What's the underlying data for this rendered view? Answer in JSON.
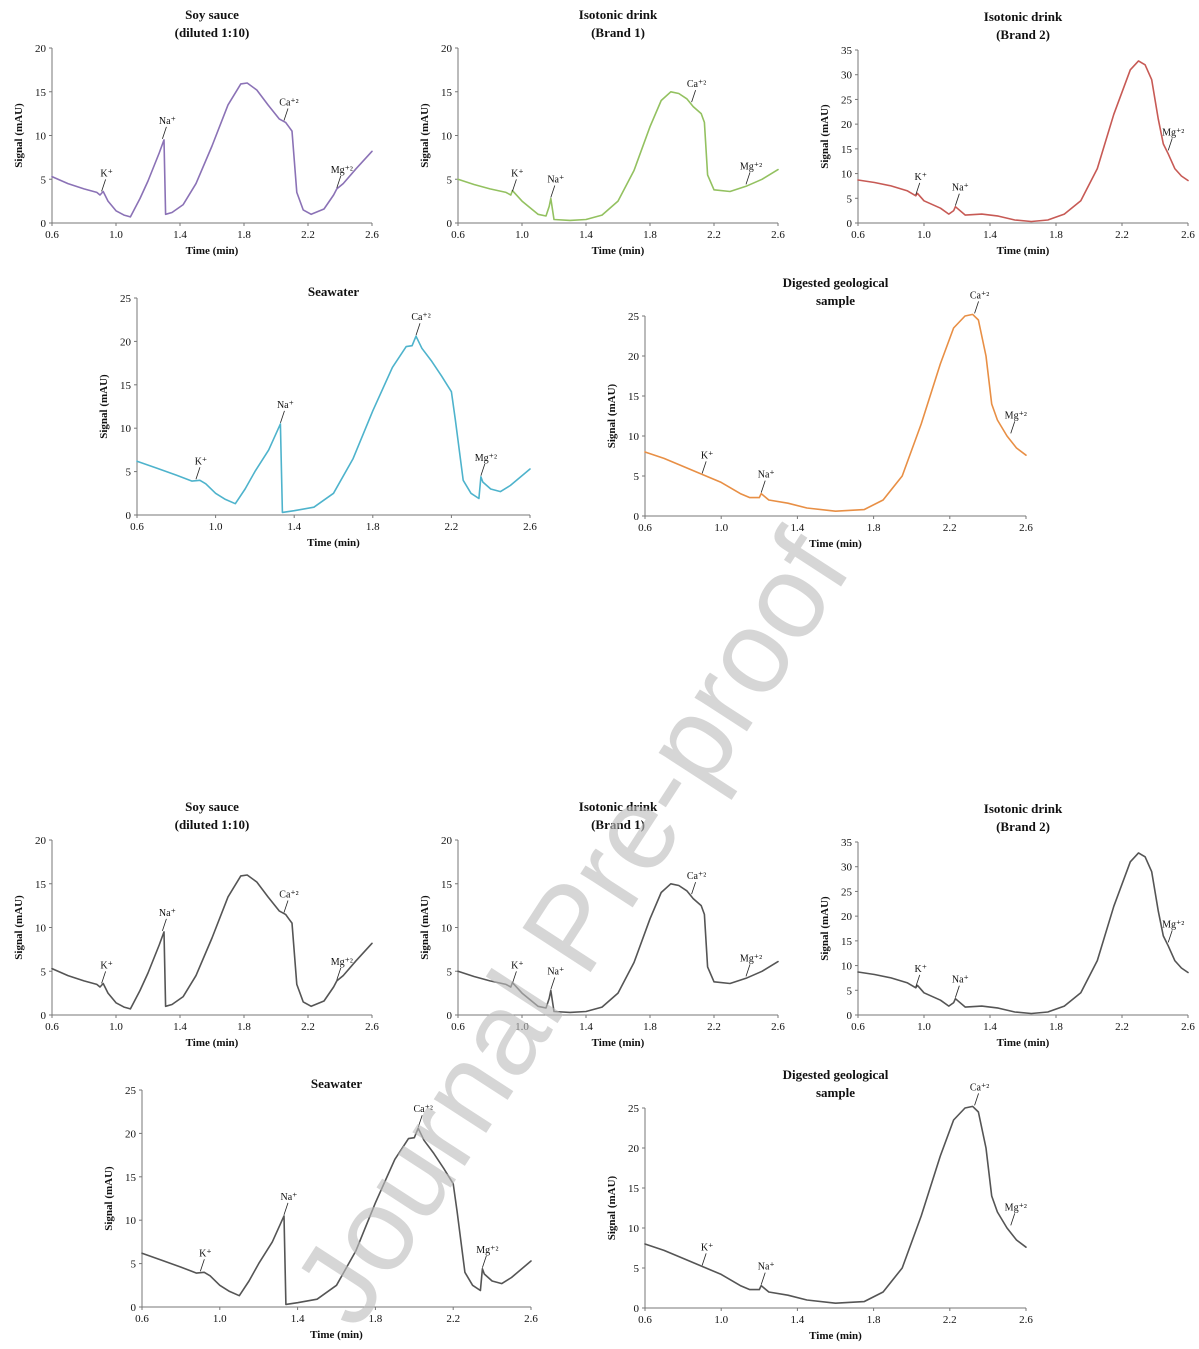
{
  "watermark": "Journal Pre-proof",
  "chart_data": [
    {
      "type": "line",
      "color": "#8b72b6",
      "title": [
        "Soy sauce",
        "(diluted 1:10)"
      ],
      "xlabel": "Time (min)",
      "ylabel": "Signal (mAU)",
      "xlim": [
        0.6,
        2.6
      ],
      "ylim": [
        0,
        20
      ],
      "xticks": [
        0.6,
        1.0,
        1.4,
        1.8,
        2.2,
        2.6
      ],
      "yticks": [
        0,
        5,
        10,
        15,
        20
      ],
      "x": [
        0.6,
        0.7,
        0.8,
        0.88,
        0.9,
        0.92,
        0.95,
        1.0,
        1.05,
        1.09,
        1.15,
        1.2,
        1.27,
        1.3,
        1.31,
        1.35,
        1.42,
        1.5,
        1.6,
        1.7,
        1.78,
        1.82,
        1.88,
        1.95,
        2.02,
        2.06,
        2.08,
        2.1,
        2.13,
        2.17,
        2.22,
        2.3,
        2.36,
        2.38,
        2.42,
        2.5,
        2.6
      ],
      "y": [
        5.3,
        4.5,
        3.9,
        3.5,
        3.2,
        3.6,
        2.5,
        1.4,
        0.9,
        0.7,
        2.8,
        4.8,
        8.0,
        9.5,
        1.0,
        1.2,
        2.1,
        4.5,
        8.8,
        13.5,
        15.9,
        16.0,
        15.2,
        13.5,
        11.9,
        11.5,
        11.0,
        10.5,
        3.5,
        1.5,
        1.0,
        1.6,
        3.2,
        3.9,
        4.5,
        6.2,
        8.2
      ],
      "annotations": [
        {
          "label": "K⁺",
          "x": 0.91,
          "y": 3.5
        },
        {
          "label": "Na⁺",
          "x": 1.29,
          "y": 9.5
        },
        {
          "label": "Ca⁺²",
          "x": 2.05,
          "y": 11.6
        },
        {
          "label": "Mg⁺²",
          "x": 2.38,
          "y": 3.9
        }
      ]
    },
    {
      "type": "line",
      "color": "#93c160",
      "title": [
        "Isotonic drink",
        "(Brand 1)"
      ],
      "xlabel": "Time (min)",
      "ylabel": "Signal (mAU)",
      "xlim": [
        0.6,
        2.6
      ],
      "ylim": [
        0,
        20
      ],
      "xticks": [
        0.6,
        1.0,
        1.4,
        1.8,
        2.2,
        2.6
      ],
      "yticks": [
        0,
        5,
        10,
        15,
        20
      ],
      "x": [
        0.6,
        0.7,
        0.8,
        0.9,
        0.93,
        0.94,
        1.0,
        1.1,
        1.15,
        1.17,
        1.18,
        1.2,
        1.3,
        1.4,
        1.5,
        1.6,
        1.7,
        1.8,
        1.87,
        1.93,
        1.98,
        2.03,
        2.07,
        2.12,
        2.14,
        2.16,
        2.2,
        2.3,
        2.4,
        2.5,
        2.6
      ],
      "y": [
        5.0,
        4.4,
        3.9,
        3.5,
        3.2,
        3.7,
        2.5,
        1.0,
        0.8,
        1.9,
        2.8,
        0.4,
        0.3,
        0.4,
        0.9,
        2.5,
        6.0,
        11.0,
        14.0,
        15.0,
        14.8,
        14.2,
        13.3,
        12.5,
        11.5,
        5.5,
        3.8,
        3.6,
        4.2,
        5.0,
        6.1
      ],
      "annotations": [
        {
          "label": "K⁺",
          "x": 0.94,
          "y": 3.5
        },
        {
          "label": "Na⁺",
          "x": 1.18,
          "y": 2.8
        },
        {
          "label": "Ca⁺²",
          "x": 2.06,
          "y": 13.7
        },
        {
          "label": "Mg⁺²",
          "x": 2.4,
          "y": 4.3
        }
      ]
    },
    {
      "type": "line",
      "color": "#c75a55",
      "title": [
        "Isotonic drink",
        "(Brand 2)"
      ],
      "xlabel": "Time (min)",
      "ylabel": "Signal (mAU)",
      "xlim": [
        0.6,
        2.6
      ],
      "ylim": [
        0,
        35
      ],
      "xticks": [
        0.6,
        1.0,
        1.4,
        1.8,
        2.2,
        2.6
      ],
      "yticks": [
        0,
        5,
        10,
        15,
        20,
        25,
        30,
        35
      ],
      "x": [
        0.6,
        0.7,
        0.8,
        0.9,
        0.95,
        0.96,
        1.0,
        1.1,
        1.15,
        1.18,
        1.19,
        1.25,
        1.35,
        1.45,
        1.55,
        1.65,
        1.75,
        1.85,
        1.95,
        2.05,
        2.15,
        2.25,
        2.3,
        2.34,
        2.38,
        2.42,
        2.45,
        2.48,
        2.52,
        2.56,
        2.6
      ],
      "y": [
        8.7,
        8.2,
        7.5,
        6.5,
        5.5,
        6.0,
        4.5,
        3.0,
        1.8,
        2.5,
        3.3,
        1.6,
        1.8,
        1.4,
        0.6,
        0.3,
        0.6,
        1.8,
        4.5,
        11.0,
        22.0,
        31.0,
        32.8,
        32.0,
        29.0,
        21.0,
        16.0,
        14.0,
        11.0,
        9.5,
        8.6
      ],
      "annotations": [
        {
          "label": "K⁺",
          "x": 0.95,
          "y": 5.5
        },
        {
          "label": "Na⁺",
          "x": 1.19,
          "y": 3.3
        },
        {
          "label": "Mg⁺²",
          "x": 2.48,
          "y": 14.5
        }
      ]
    },
    {
      "type": "line",
      "color": "#4eb3cc",
      "title": [
        "Seawater"
      ],
      "xlabel": "Time (min)",
      "ylabel": "Signal (mAU)",
      "xlim": [
        0.6,
        2.6
      ],
      "ylim": [
        0,
        25
      ],
      "xticks": [
        0.6,
        1.0,
        1.4,
        1.8,
        2.2,
        2.6
      ],
      "yticks": [
        0,
        5,
        10,
        15,
        20,
        25
      ],
      "x": [
        0.6,
        0.7,
        0.8,
        0.88,
        0.92,
        0.95,
        1.0,
        1.05,
        1.1,
        1.15,
        1.2,
        1.27,
        1.33,
        1.34,
        1.4,
        1.5,
        1.6,
        1.7,
        1.8,
        1.9,
        1.97,
        2.0,
        2.02,
        2.05,
        2.1,
        2.15,
        2.2,
        2.22,
        2.26,
        2.3,
        2.34,
        2.35,
        2.36,
        2.4,
        2.45,
        2.5,
        2.6
      ],
      "y": [
        6.2,
        5.4,
        4.6,
        3.9,
        4.0,
        3.6,
        2.5,
        1.8,
        1.3,
        3.0,
        5.0,
        7.5,
        10.5,
        0.3,
        0.5,
        0.9,
        2.5,
        6.5,
        12.0,
        17.0,
        19.4,
        19.5,
        20.6,
        19.2,
        17.7,
        16.0,
        14.2,
        11.0,
        4.0,
        2.5,
        1.9,
        4.4,
        3.8,
        3.0,
        2.7,
        3.4,
        5.3
      ],
      "annotations": [
        {
          "label": "K⁺",
          "x": 0.9,
          "y": 4.0
        },
        {
          "label": "Na⁺",
          "x": 1.33,
          "y": 10.5
        },
        {
          "label": "Ca⁺²",
          "x": 2.02,
          "y": 20.6
        },
        {
          "label": "Mg⁺²",
          "x": 2.35,
          "y": 4.4
        }
      ]
    },
    {
      "type": "line",
      "color": "#e88f45",
      "title": [
        "Digested geological",
        "sample"
      ],
      "xlabel": "Time (min)",
      "ylabel": "Signal (mAU)",
      "xlim": [
        0.6,
        2.6
      ],
      "ylim": [
        0,
        25
      ],
      "xticks": [
        0.6,
        1.0,
        1.4,
        1.8,
        2.2,
        2.6
      ],
      "yticks": [
        0,
        5,
        10,
        15,
        20,
        25
      ],
      "x": [
        0.6,
        0.7,
        0.8,
        0.9,
        1.0,
        1.1,
        1.15,
        1.2,
        1.21,
        1.25,
        1.35,
        1.45,
        1.6,
        1.75,
        1.85,
        1.95,
        2.05,
        2.15,
        2.22,
        2.28,
        2.32,
        2.35,
        2.39,
        2.42,
        2.45,
        2.5,
        2.55,
        2.6
      ],
      "y": [
        8.0,
        7.2,
        6.2,
        5.2,
        4.2,
        2.8,
        2.3,
        2.3,
        2.8,
        2.0,
        1.6,
        1.0,
        0.6,
        0.8,
        2.0,
        5.0,
        11.5,
        19.0,
        23.5,
        25.0,
        25.2,
        24.5,
        20.0,
        14.0,
        12.0,
        10.0,
        8.5,
        7.6
      ],
      "annotations": [
        {
          "label": "K⁺",
          "x": 0.9,
          "y": 5.2
        },
        {
          "label": "Na⁺",
          "x": 1.21,
          "y": 2.8
        },
        {
          "label": "Ca⁺²",
          "x": 2.33,
          "y": 25.2
        },
        {
          "label": "Mg⁺²",
          "x": 2.52,
          "y": 10.2
        }
      ]
    },
    {
      "type": "line",
      "color": "#555555",
      "title": [
        "Soy sauce",
        "(diluted 1:10)"
      ],
      "xlabel": "Time (min)",
      "ylabel": "Signal (mAU)",
      "xlim": [
        0.6,
        2.6
      ],
      "ylim": [
        0,
        20
      ],
      "xticks": [
        0.6,
        1.0,
        1.4,
        1.8,
        2.2,
        2.6
      ],
      "yticks": [
        0,
        5,
        10,
        15,
        20
      ],
      "x": [
        0.6,
        0.7,
        0.8,
        0.88,
        0.9,
        0.92,
        0.95,
        1.0,
        1.05,
        1.09,
        1.15,
        1.2,
        1.27,
        1.3,
        1.31,
        1.35,
        1.42,
        1.5,
        1.6,
        1.7,
        1.78,
        1.82,
        1.88,
        1.95,
        2.02,
        2.06,
        2.08,
        2.1,
        2.13,
        2.17,
        2.22,
        2.3,
        2.36,
        2.38,
        2.42,
        2.5,
        2.6
      ],
      "y": [
        5.3,
        4.5,
        3.9,
        3.5,
        3.2,
        3.6,
        2.5,
        1.4,
        0.9,
        0.7,
        2.8,
        4.8,
        8.0,
        9.5,
        1.0,
        1.2,
        2.1,
        4.5,
        8.8,
        13.5,
        15.9,
        16.0,
        15.2,
        13.5,
        11.9,
        11.5,
        11.0,
        10.5,
        3.5,
        1.5,
        1.0,
        1.6,
        3.2,
        3.9,
        4.5,
        6.2,
        8.2
      ],
      "annotations": [
        {
          "label": "K⁺",
          "x": 0.91,
          "y": 3.5
        },
        {
          "label": "Na⁺",
          "x": 1.29,
          "y": 9.5
        },
        {
          "label": "Ca⁺²",
          "x": 2.05,
          "y": 11.6
        },
        {
          "label": "Mg⁺²",
          "x": 2.38,
          "y": 3.9
        }
      ]
    },
    {
      "type": "line",
      "color": "#555555",
      "title": [
        "Isotonic drink",
        "(Brand 1)"
      ],
      "xlabel": "Time (min)",
      "ylabel": "Signal (mAU)",
      "xlim": [
        0.6,
        2.6
      ],
      "ylim": [
        0,
        20
      ],
      "xticks": [
        0.6,
        1.0,
        1.4,
        1.8,
        2.2,
        2.6
      ],
      "yticks": [
        0,
        5,
        10,
        15,
        20
      ],
      "x": [
        0.6,
        0.7,
        0.8,
        0.9,
        0.93,
        0.94,
        1.0,
        1.1,
        1.15,
        1.17,
        1.18,
        1.2,
        1.3,
        1.4,
        1.5,
        1.6,
        1.7,
        1.8,
        1.87,
        1.93,
        1.98,
        2.03,
        2.07,
        2.12,
        2.14,
        2.16,
        2.2,
        2.3,
        2.4,
        2.5,
        2.6
      ],
      "y": [
        5.0,
        4.4,
        3.9,
        3.5,
        3.2,
        3.7,
        2.5,
        1.0,
        0.8,
        1.9,
        2.8,
        0.4,
        0.3,
        0.4,
        0.9,
        2.5,
        6.0,
        11.0,
        14.0,
        15.0,
        14.8,
        14.2,
        13.3,
        12.5,
        11.5,
        5.5,
        3.8,
        3.6,
        4.2,
        5.0,
        6.1
      ],
      "annotations": [
        {
          "label": "K⁺",
          "x": 0.94,
          "y": 3.5
        },
        {
          "label": "Na⁺",
          "x": 1.18,
          "y": 2.8
        },
        {
          "label": "Ca⁺²",
          "x": 2.06,
          "y": 13.7
        },
        {
          "label": "Mg⁺²",
          "x": 2.4,
          "y": 4.3
        }
      ]
    },
    {
      "type": "line",
      "color": "#555555",
      "title": [
        "Isotonic drink",
        "(Brand 2)"
      ],
      "xlabel": "Time (min)",
      "ylabel": "Signal (mAU)",
      "xlim": [
        0.6,
        2.6
      ],
      "ylim": [
        0,
        35
      ],
      "xticks": [
        0.6,
        1.0,
        1.4,
        1.8,
        2.2,
        2.6
      ],
      "yticks": [
        0,
        5,
        10,
        15,
        20,
        25,
        30,
        35
      ],
      "x": [
        0.6,
        0.7,
        0.8,
        0.9,
        0.95,
        0.96,
        1.0,
        1.1,
        1.15,
        1.18,
        1.19,
        1.25,
        1.35,
        1.45,
        1.55,
        1.65,
        1.75,
        1.85,
        1.95,
        2.05,
        2.15,
        2.25,
        2.3,
        2.34,
        2.38,
        2.42,
        2.45,
        2.48,
        2.52,
        2.56,
        2.6
      ],
      "y": [
        8.7,
        8.2,
        7.5,
        6.5,
        5.5,
        6.0,
        4.5,
        3.0,
        1.8,
        2.5,
        3.3,
        1.6,
        1.8,
        1.4,
        0.6,
        0.3,
        0.6,
        1.8,
        4.5,
        11.0,
        22.0,
        31.0,
        32.8,
        32.0,
        29.0,
        21.0,
        16.0,
        14.0,
        11.0,
        9.5,
        8.6
      ],
      "annotations": [
        {
          "label": "K⁺",
          "x": 0.95,
          "y": 5.5
        },
        {
          "label": "Na⁺",
          "x": 1.19,
          "y": 3.3
        },
        {
          "label": "Mg⁺²",
          "x": 2.48,
          "y": 14.5
        }
      ]
    },
    {
      "type": "line",
      "color": "#555555",
      "title": [
        "Seawater"
      ],
      "xlabel": "Time (min)",
      "ylabel": "Signal (mAU)",
      "xlim": [
        0.6,
        2.6
      ],
      "ylim": [
        0,
        25
      ],
      "xticks": [
        0.6,
        1.0,
        1.4,
        1.8,
        2.2,
        2.6
      ],
      "yticks": [
        0,
        5,
        10,
        15,
        20,
        25
      ],
      "x": [
        0.6,
        0.7,
        0.8,
        0.88,
        0.92,
        0.95,
        1.0,
        1.05,
        1.1,
        1.15,
        1.2,
        1.27,
        1.33,
        1.34,
        1.4,
        1.5,
        1.6,
        1.7,
        1.8,
        1.9,
        1.97,
        2.0,
        2.02,
        2.05,
        2.1,
        2.15,
        2.2,
        2.22,
        2.26,
        2.3,
        2.34,
        2.35,
        2.36,
        2.4,
        2.45,
        2.5,
        2.6
      ],
      "y": [
        6.2,
        5.4,
        4.6,
        3.9,
        4.0,
        3.6,
        2.5,
        1.8,
        1.3,
        3.0,
        5.0,
        7.5,
        10.5,
        0.3,
        0.5,
        0.9,
        2.5,
        6.5,
        12.0,
        17.0,
        19.4,
        19.5,
        20.6,
        19.2,
        17.7,
        16.0,
        14.2,
        11.0,
        4.0,
        2.5,
        1.9,
        4.4,
        3.8,
        3.0,
        2.7,
        3.4,
        5.3
      ],
      "annotations": [
        {
          "label": "K⁺",
          "x": 0.9,
          "y": 4.0
        },
        {
          "label": "Na⁺",
          "x": 1.33,
          "y": 10.5
        },
        {
          "label": "Ca⁺²",
          "x": 2.02,
          "y": 20.6
        },
        {
          "label": "Mg⁺²",
          "x": 2.35,
          "y": 4.4
        }
      ]
    },
    {
      "type": "line",
      "color": "#555555",
      "title": [
        "Digested geological",
        "sample"
      ],
      "xlabel": "Time (min)",
      "ylabel": "Signal (mAU)",
      "xlim": [
        0.6,
        2.6
      ],
      "ylim": [
        0,
        25
      ],
      "xticks": [
        0.6,
        1.0,
        1.4,
        1.8,
        2.2,
        2.6
      ],
      "yticks": [
        0,
        5,
        10,
        15,
        20,
        25
      ],
      "x": [
        0.6,
        0.7,
        0.8,
        0.9,
        1.0,
        1.1,
        1.15,
        1.2,
        1.21,
        1.25,
        1.35,
        1.45,
        1.6,
        1.75,
        1.85,
        1.95,
        2.05,
        2.15,
        2.22,
        2.28,
        2.32,
        2.35,
        2.39,
        2.42,
        2.45,
        2.5,
        2.55,
        2.6
      ],
      "y": [
        8.0,
        7.2,
        6.2,
        5.2,
        4.2,
        2.8,
        2.3,
        2.3,
        2.8,
        2.0,
        1.6,
        1.0,
        0.6,
        0.8,
        2.0,
        5.0,
        11.5,
        19.0,
        23.5,
        25.0,
        25.2,
        24.5,
        20.0,
        14.0,
        12.0,
        10.0,
        8.5,
        7.6
      ],
      "annotations": [
        {
          "label": "K⁺",
          "x": 0.9,
          "y": 5.2
        },
        {
          "label": "Na⁺",
          "x": 1.21,
          "y": 2.8
        },
        {
          "label": "Ca⁺²",
          "x": 2.33,
          "y": 25.2
        },
        {
          "label": "Mg⁺²",
          "x": 2.52,
          "y": 10.2
        }
      ]
    }
  ]
}
